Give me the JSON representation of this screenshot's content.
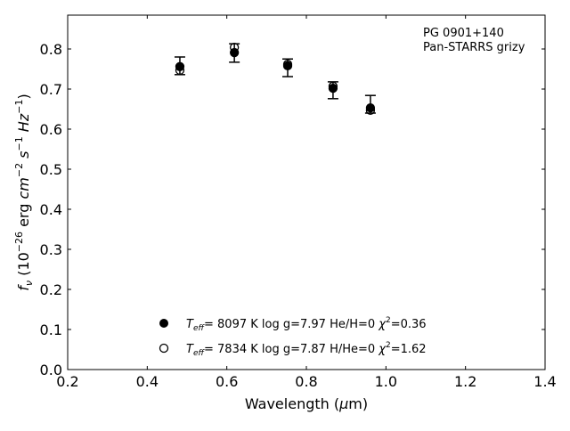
{
  "chart_data": {
    "type": "scatter",
    "title": "",
    "annotation": [
      "PG 0901+140",
      "Pan-STARRS grizy"
    ],
    "xlabel": {
      "prefix": "Wavelength (",
      "mu": "μ",
      "suffix": "m)"
    },
    "ylabel": {
      "f": "f",
      "nu": "ν",
      "mid": " (10",
      "exp1": "−26",
      "erg": " erg ",
      "cm": "cm",
      "exp2": "−2",
      "s": " s",
      "exp3": "−1",
      "hz": " Hz",
      "exp4": "−1",
      "close": ")"
    },
    "xlim": [
      0.2,
      1.4
    ],
    "ylim": [
      0.0,
      0.88
    ],
    "xticks": [
      "0.2",
      "0.4",
      "0.6",
      "0.8",
      "1.0",
      "1.2",
      "1.4"
    ],
    "yticks": [
      "0.0",
      "0.1",
      "0.2",
      "0.3",
      "0.4",
      "0.5",
      "0.6",
      "0.7",
      "0.8"
    ],
    "grid": false,
    "legend_position": "bottom-center",
    "observed": {
      "x": [
        0.482,
        0.619,
        0.753,
        0.867,
        0.961
      ],
      "y": [
        0.758,
        0.79,
        0.753,
        0.697,
        0.662
      ],
      "yerr": [
        0.022,
        0.023,
        0.022,
        0.021,
        0.022
      ]
    },
    "series": [
      {
        "marker": "filled-circle",
        "x": [
          0.482,
          0.619,
          0.753,
          0.867,
          0.961
        ],
        "y": [
          0.756,
          0.791,
          0.758,
          0.702,
          0.653
        ],
        "label": {
          "T": "T",
          "eff": "eff",
          "body": "=  8097 K  log g=7.97  He/H=0  ",
          "chi": "χ",
          "sq": "2",
          "val": "=0.36"
        }
      },
      {
        "marker": "open-circle",
        "x": [
          0.482,
          0.619,
          0.753,
          0.867,
          0.961
        ],
        "y": [
          0.747,
          0.804,
          0.762,
          0.707,
          0.647
        ],
        "label": {
          "T": "T",
          "eff": "eff",
          "body": "=  7834 K  log g=7.87  H/He=0  ",
          "chi": "χ",
          "sq": "2",
          "val": "=1.62"
        }
      }
    ]
  }
}
